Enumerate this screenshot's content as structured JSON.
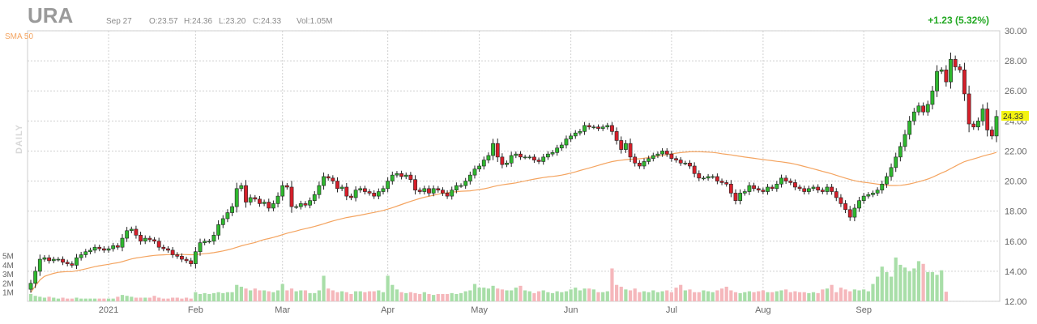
{
  "ticker": "URA",
  "header": {
    "date": "Sep 27",
    "open": "O:23.57",
    "high": "H:24.36",
    "low": "L:23.20",
    "close": "C:24.33",
    "volume": "Vol:1.05M",
    "change": "+1.23 (5.32%)"
  },
  "period_label": "DAILY",
  "colors": {
    "up": "#2fb82f",
    "down": "#d61f2a",
    "sma": "#f4a460",
    "up_vol": "#a8dea8",
    "down_vol": "#f5b7bb",
    "change": "#22a822",
    "last_bg": "#f3f311"
  },
  "chart_data": {
    "type": "candlestick",
    "series_label": "SMA 50",
    "last_value_label": "24.33",
    "ylim": [
      12,
      30
    ],
    "y_ticks": [
      "30.00",
      "28.00",
      "26.00",
      "24.00",
      "22.00",
      "20.00",
      "18.00",
      "16.00",
      "14.00",
      "12.00"
    ],
    "volume_ticks": [
      "5M",
      "4M",
      "3M",
      "2M",
      "1M"
    ],
    "volume_max": 5.5,
    "month_labels": [
      {
        "label": "2021",
        "index": 17
      },
      {
        "label": "Feb",
        "index": 36
      },
      {
        "label": "Mar",
        "index": 55
      },
      {
        "label": "Apr",
        "index": 78
      },
      {
        "label": "May",
        "index": 98
      },
      {
        "label": "Jun",
        "index": 118
      },
      {
        "label": "Jul",
        "index": 140
      },
      {
        "label": "Aug",
        "index": 160
      },
      {
        "label": "Sep",
        "index": 182
      }
    ],
    "closes": [
      13.2,
      14.0,
      14.8,
      14.9,
      14.7,
      14.8,
      14.8,
      14.6,
      14.5,
      14.4,
      14.9,
      15.1,
      15.3,
      15.4,
      15.6,
      15.5,
      15.4,
      15.5,
      15.7,
      15.6,
      16.2,
      16.7,
      16.8,
      16.4,
      16.0,
      16.2,
      16.1,
      16.0,
      15.6,
      15.5,
      15.4,
      15.1,
      15.0,
      14.8,
      14.7,
      14.5,
      15.3,
      15.9,
      16.0,
      16.0,
      16.4,
      17.1,
      17.5,
      17.9,
      18.3,
      19.5,
      19.7,
      18.6,
      18.9,
      18.8,
      18.5,
      18.6,
      18.2,
      18.5,
      19.0,
      19.7,
      19.6,
      18.3,
      18.3,
      18.5,
      18.4,
      18.7,
      19.1,
      19.7,
      20.3,
      20.2,
      20.0,
      19.5,
      19.6,
      19.0,
      18.9,
      19.4,
      19.5,
      19.3,
      19.2,
      19.0,
      19.3,
      19.5,
      20.0,
      20.4,
      20.5,
      20.3,
      20.4,
      20.1,
      19.4,
      19.3,
      19.5,
      19.2,
      19.5,
      19.4,
      19.2,
      19.0,
      19.4,
      19.7,
      19.7,
      20.0,
      20.4,
      20.8,
      21.0,
      21.4,
      21.7,
      22.5,
      21.6,
      21.1,
      21.2,
      21.7,
      21.8,
      21.6,
      21.6,
      21.6,
      21.4,
      21.3,
      21.6,
      21.8,
      21.9,
      22.2,
      22.4,
      22.8,
      23.0,
      23.2,
      23.3,
      23.7,
      23.6,
      23.6,
      23.5,
      23.6,
      23.7,
      23.3,
      22.7,
      22.1,
      22.5,
      21.6,
      21.2,
      21.0,
      21.3,
      21.5,
      21.7,
      21.8,
      22.0,
      21.8,
      21.5,
      21.4,
      21.2,
      21.2,
      21.0,
      20.5,
      20.2,
      20.2,
      20.3,
      20.3,
      20.0,
      19.9,
      19.8,
      19.2,
      18.7,
      19.2,
      19.3,
      19.7,
      19.5,
      19.4,
      19.3,
      19.6,
      19.5,
      19.8,
      20.2,
      20.0,
      19.9,
      19.6,
      19.5,
      19.3,
      19.5,
      19.6,
      19.4,
      19.3,
      19.6,
      19.3,
      18.9,
      18.5,
      18.1,
      17.6,
      18.2,
      18.7,
      19.0,
      19.1,
      19.2,
      19.4,
      19.8,
      20.3,
      20.9,
      21.6,
      22.3,
      23.1,
      24.0,
      24.6,
      25.0,
      24.6,
      25.1,
      26.0,
      27.3,
      27.4,
      26.6,
      28.1,
      27.6,
      27.4,
      25.8,
      23.8,
      23.6,
      24.0,
      24.8,
      23.4,
      23.0,
      24.3
    ],
    "volumes": [
      0.8,
      0.6,
      0.5,
      0.4,
      0.5,
      0.4,
      0.3,
      0.4,
      0.3,
      0.3,
      0.4,
      0.3,
      0.3,
      0.3,
      0.3,
      0.3,
      0.3,
      0.3,
      0.3,
      0.5,
      0.7,
      0.6,
      0.5,
      0.4,
      0.4,
      0.4,
      0.4,
      0.6,
      0.4,
      0.3,
      0.3,
      0.4,
      0.4,
      0.3,
      0.4,
      0.3,
      1.0,
      0.8,
      0.9,
      0.8,
      0.9,
      1.0,
      0.9,
      1.0,
      1.0,
      1.8,
      1.6,
      1.4,
      1.2,
      1.4,
      1.2,
      1.2,
      1.1,
      1.0,
      1.2,
      1.9,
      1.2,
      1.4,
      1.1,
      1.2,
      1.2,
      0.9,
      0.9,
      1.2,
      2.8,
      1.4,
      1.2,
      1.0,
      1.1,
      1.0,
      0.8,
      1.1,
      1.1,
      1.0,
      1.1,
      1.1,
      1.2,
      1.0,
      2.8,
      1.8,
      1.3,
      1.0,
      0.9,
      1.0,
      0.9,
      0.8,
      1.0,
      0.8,
      0.7,
      0.8,
      0.8,
      0.8,
      0.9,
      0.8,
      0.9,
      1.1,
      1.2,
      1.9,
      1.5,
      1.5,
      1.4,
      1.7,
      1.4,
      1.3,
      1.2,
      1.2,
      1.5,
      1.7,
      1.2,
      1.1,
      0.9,
      1.1,
      1.2,
      1.0,
      0.9,
      1.1,
      1.0,
      1.1,
      1.3,
      1.5,
      1.2,
      1.4,
      1.4,
      1.3,
      1.0,
      1.0,
      1.1,
      3.6,
      1.8,
      1.6,
      1.3,
      1.2,
      1.4,
      1.0,
      1.1,
      1.0,
      1.2,
      1.0,
      1.1,
      1.2,
      1.0,
      1.5,
      1.8,
      1.2,
      1.3,
      1.0,
      1.0,
      1.2,
      1.1,
      1.0,
      1.2,
      1.4,
      1.6,
      1.2,
      1.0,
      0.9,
      1.0,
      1.1,
      1.0,
      1.1,
      1.2,
      1.0,
      1.0,
      1.1,
      1.2,
      1.3,
      1.0,
      1.1,
      1.0,
      1.0,
      0.9,
      1.0,
      0.9,
      1.3,
      1.4,
      1.8,
      1.0,
      1.5,
      1.3,
      1.1,
      1.3,
      1.2,
      1.3,
      1.1,
      1.9,
      2.7,
      3.8,
      3.2,
      2.7,
      4.8,
      4.0,
      3.7,
      3.3,
      3.6,
      4.4,
      4.1,
      3.2,
      3.2,
      2.9,
      3.4,
      1.05
    ]
  }
}
